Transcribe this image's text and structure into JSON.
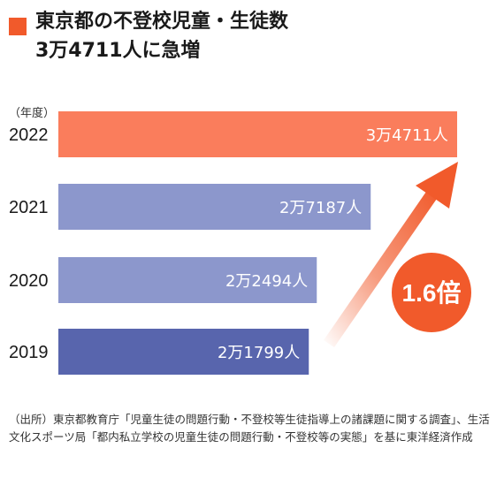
{
  "title": {
    "line1": "東京都の不登校児童・生徒数",
    "line2": "3万4711人に急増"
  },
  "colors": {
    "accent": "#f15a2b",
    "bar_2022": "#fa7d5c",
    "bar_2021": "#8c97cc",
    "bar_2020": "#8c97cc",
    "bar_2019": "#5865ad",
    "badge": "#f15a2b"
  },
  "chart_data": {
    "type": "bar",
    "orientation": "horizontal",
    "categories": [
      "2022",
      "2021",
      "2020",
      "2019"
    ],
    "values": [
      34711,
      27187,
      22494,
      21799
    ],
    "value_labels": [
      "3万4711人",
      "2万7187人",
      "2万2494人",
      "2万1799人"
    ],
    "year_unit_label": "（年度）",
    "growth_label": "1.6倍",
    "grid": false
  },
  "source": "（出所）東京都教育庁「児童生徒の問題行動・不登校等生徒指導上の諸課題に関する調査」、生活文化スポーツ局「都内私立学校の児童生徒の問題行動・不登校等の実態」を基に東洋経済作成"
}
